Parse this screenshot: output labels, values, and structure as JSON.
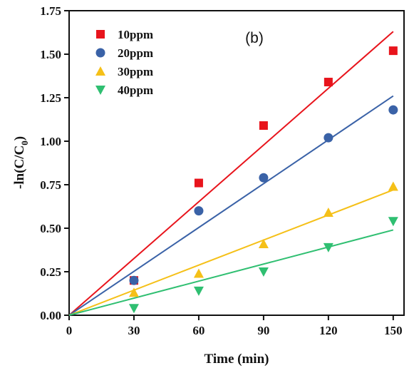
{
  "chart_data": {
    "type": "scatter",
    "panel_label": "(b)",
    "xlabel": "Time (min)",
    "ylabel": {
      "main": "-ln(C/C",
      "sub": "0",
      "end": ")"
    },
    "xlim": [
      0,
      155
    ],
    "ylim": [
      0,
      1.75
    ],
    "x_ticks": [
      "0",
      "30",
      "60",
      "90",
      "120",
      "150"
    ],
    "x_tick_values": [
      0,
      30,
      60,
      90,
      120,
      150
    ],
    "y_ticks": [
      "0.00",
      "0.25",
      "0.50",
      "0.75",
      "1.00",
      "1.25",
      "1.50",
      "1.75"
    ],
    "y_tick_values": [
      0,
      0.25,
      0.5,
      0.75,
      1.0,
      1.25,
      1.5,
      1.75
    ],
    "grid": false,
    "legend_position": "top-left",
    "series": [
      {
        "name": "10ppm",
        "marker": "square",
        "color": "#e8141c",
        "x": [
          30,
          60,
          90,
          120,
          150
        ],
        "y": [
          0.2,
          0.76,
          1.09,
          1.34,
          1.52
        ],
        "fit": {
          "x": [
            0,
            150
          ],
          "y": [
            0,
            1.63
          ]
        }
      },
      {
        "name": "20ppm",
        "marker": "circle",
        "color": "#3a62a7",
        "x": [
          30,
          60,
          90,
          120,
          150
        ],
        "y": [
          0.2,
          0.6,
          0.79,
          1.02,
          1.18
        ],
        "fit": {
          "x": [
            0,
            150
          ],
          "y": [
            0,
            1.26
          ]
        }
      },
      {
        "name": "30ppm",
        "marker": "triangle-up",
        "color": "#f5c018",
        "x": [
          30,
          60,
          90,
          120,
          150
        ],
        "y": [
          0.13,
          0.24,
          0.41,
          0.59,
          0.74
        ],
        "fit": {
          "x": [
            0,
            150
          ],
          "y": [
            0,
            0.72
          ]
        }
      },
      {
        "name": "40ppm",
        "marker": "triangle-down",
        "color": "#2fbf71",
        "x": [
          30,
          60,
          90,
          120,
          150
        ],
        "y": [
          0.04,
          0.14,
          0.25,
          0.39,
          0.54
        ],
        "fit": {
          "x": [
            0,
            150
          ],
          "y": [
            0,
            0.49
          ]
        }
      }
    ]
  }
}
